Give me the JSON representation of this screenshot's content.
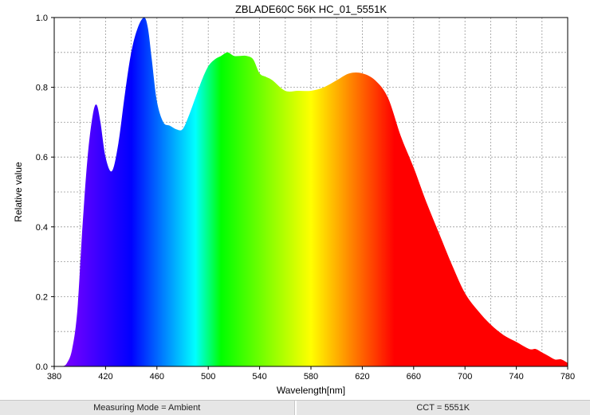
{
  "chart_data": {
    "type": "area",
    "title": "ZBLADE60C 56K HC_01_5551K",
    "xlabel": "Wavelength[nm]",
    "ylabel": "Relative value",
    "xlim": [
      380,
      780
    ],
    "ylim": [
      0,
      1.0
    ],
    "xticks": [
      380,
      420,
      460,
      500,
      540,
      580,
      620,
      660,
      700,
      740,
      780
    ],
    "yticks": [
      0.0,
      0.2,
      0.4,
      0.6,
      0.8,
      1.0
    ],
    "xtick_labels": [
      "380",
      "420",
      "460",
      "500",
      "540",
      "580",
      "620",
      "660",
      "700",
      "740",
      "780"
    ],
    "ytick_labels": [
      "0.0",
      "0.2",
      "0.4",
      "0.6",
      "0.8",
      "1.0"
    ],
    "grid": true,
    "fill": "visible-spectrum",
    "series": [
      {
        "x": [
          380,
          386,
          390,
          394,
          398,
          402,
          406,
          410,
          413,
          416,
          420,
          425,
          430,
          435,
          440,
          445,
          450,
          453,
          456,
          460,
          465,
          470,
          475,
          480,
          485,
          490,
          495,
          500,
          505,
          510,
          515,
          520,
          525,
          530,
          535,
          540,
          545,
          550,
          560,
          570,
          580,
          590,
          600,
          610,
          620,
          630,
          640,
          650,
          660,
          670,
          680,
          690,
          700,
          710,
          720,
          730,
          740,
          750,
          755,
          760,
          765,
          770,
          775,
          780
        ],
        "y": [
          0.0,
          0.0,
          0.01,
          0.05,
          0.16,
          0.4,
          0.6,
          0.72,
          0.75,
          0.7,
          0.6,
          0.56,
          0.64,
          0.78,
          0.9,
          0.97,
          1.0,
          0.97,
          0.88,
          0.76,
          0.7,
          0.69,
          0.68,
          0.68,
          0.72,
          0.77,
          0.82,
          0.86,
          0.88,
          0.89,
          0.9,
          0.89,
          0.89,
          0.89,
          0.88,
          0.84,
          0.83,
          0.82,
          0.79,
          0.79,
          0.79,
          0.8,
          0.82,
          0.84,
          0.84,
          0.82,
          0.77,
          0.66,
          0.57,
          0.47,
          0.38,
          0.29,
          0.21,
          0.16,
          0.12,
          0.09,
          0.07,
          0.05,
          0.05,
          0.04,
          0.03,
          0.02,
          0.02,
          0.01
        ]
      }
    ]
  },
  "status": {
    "measuring_mode": "Measuring Mode = Ambient",
    "cct": "CCT = 5551K"
  }
}
